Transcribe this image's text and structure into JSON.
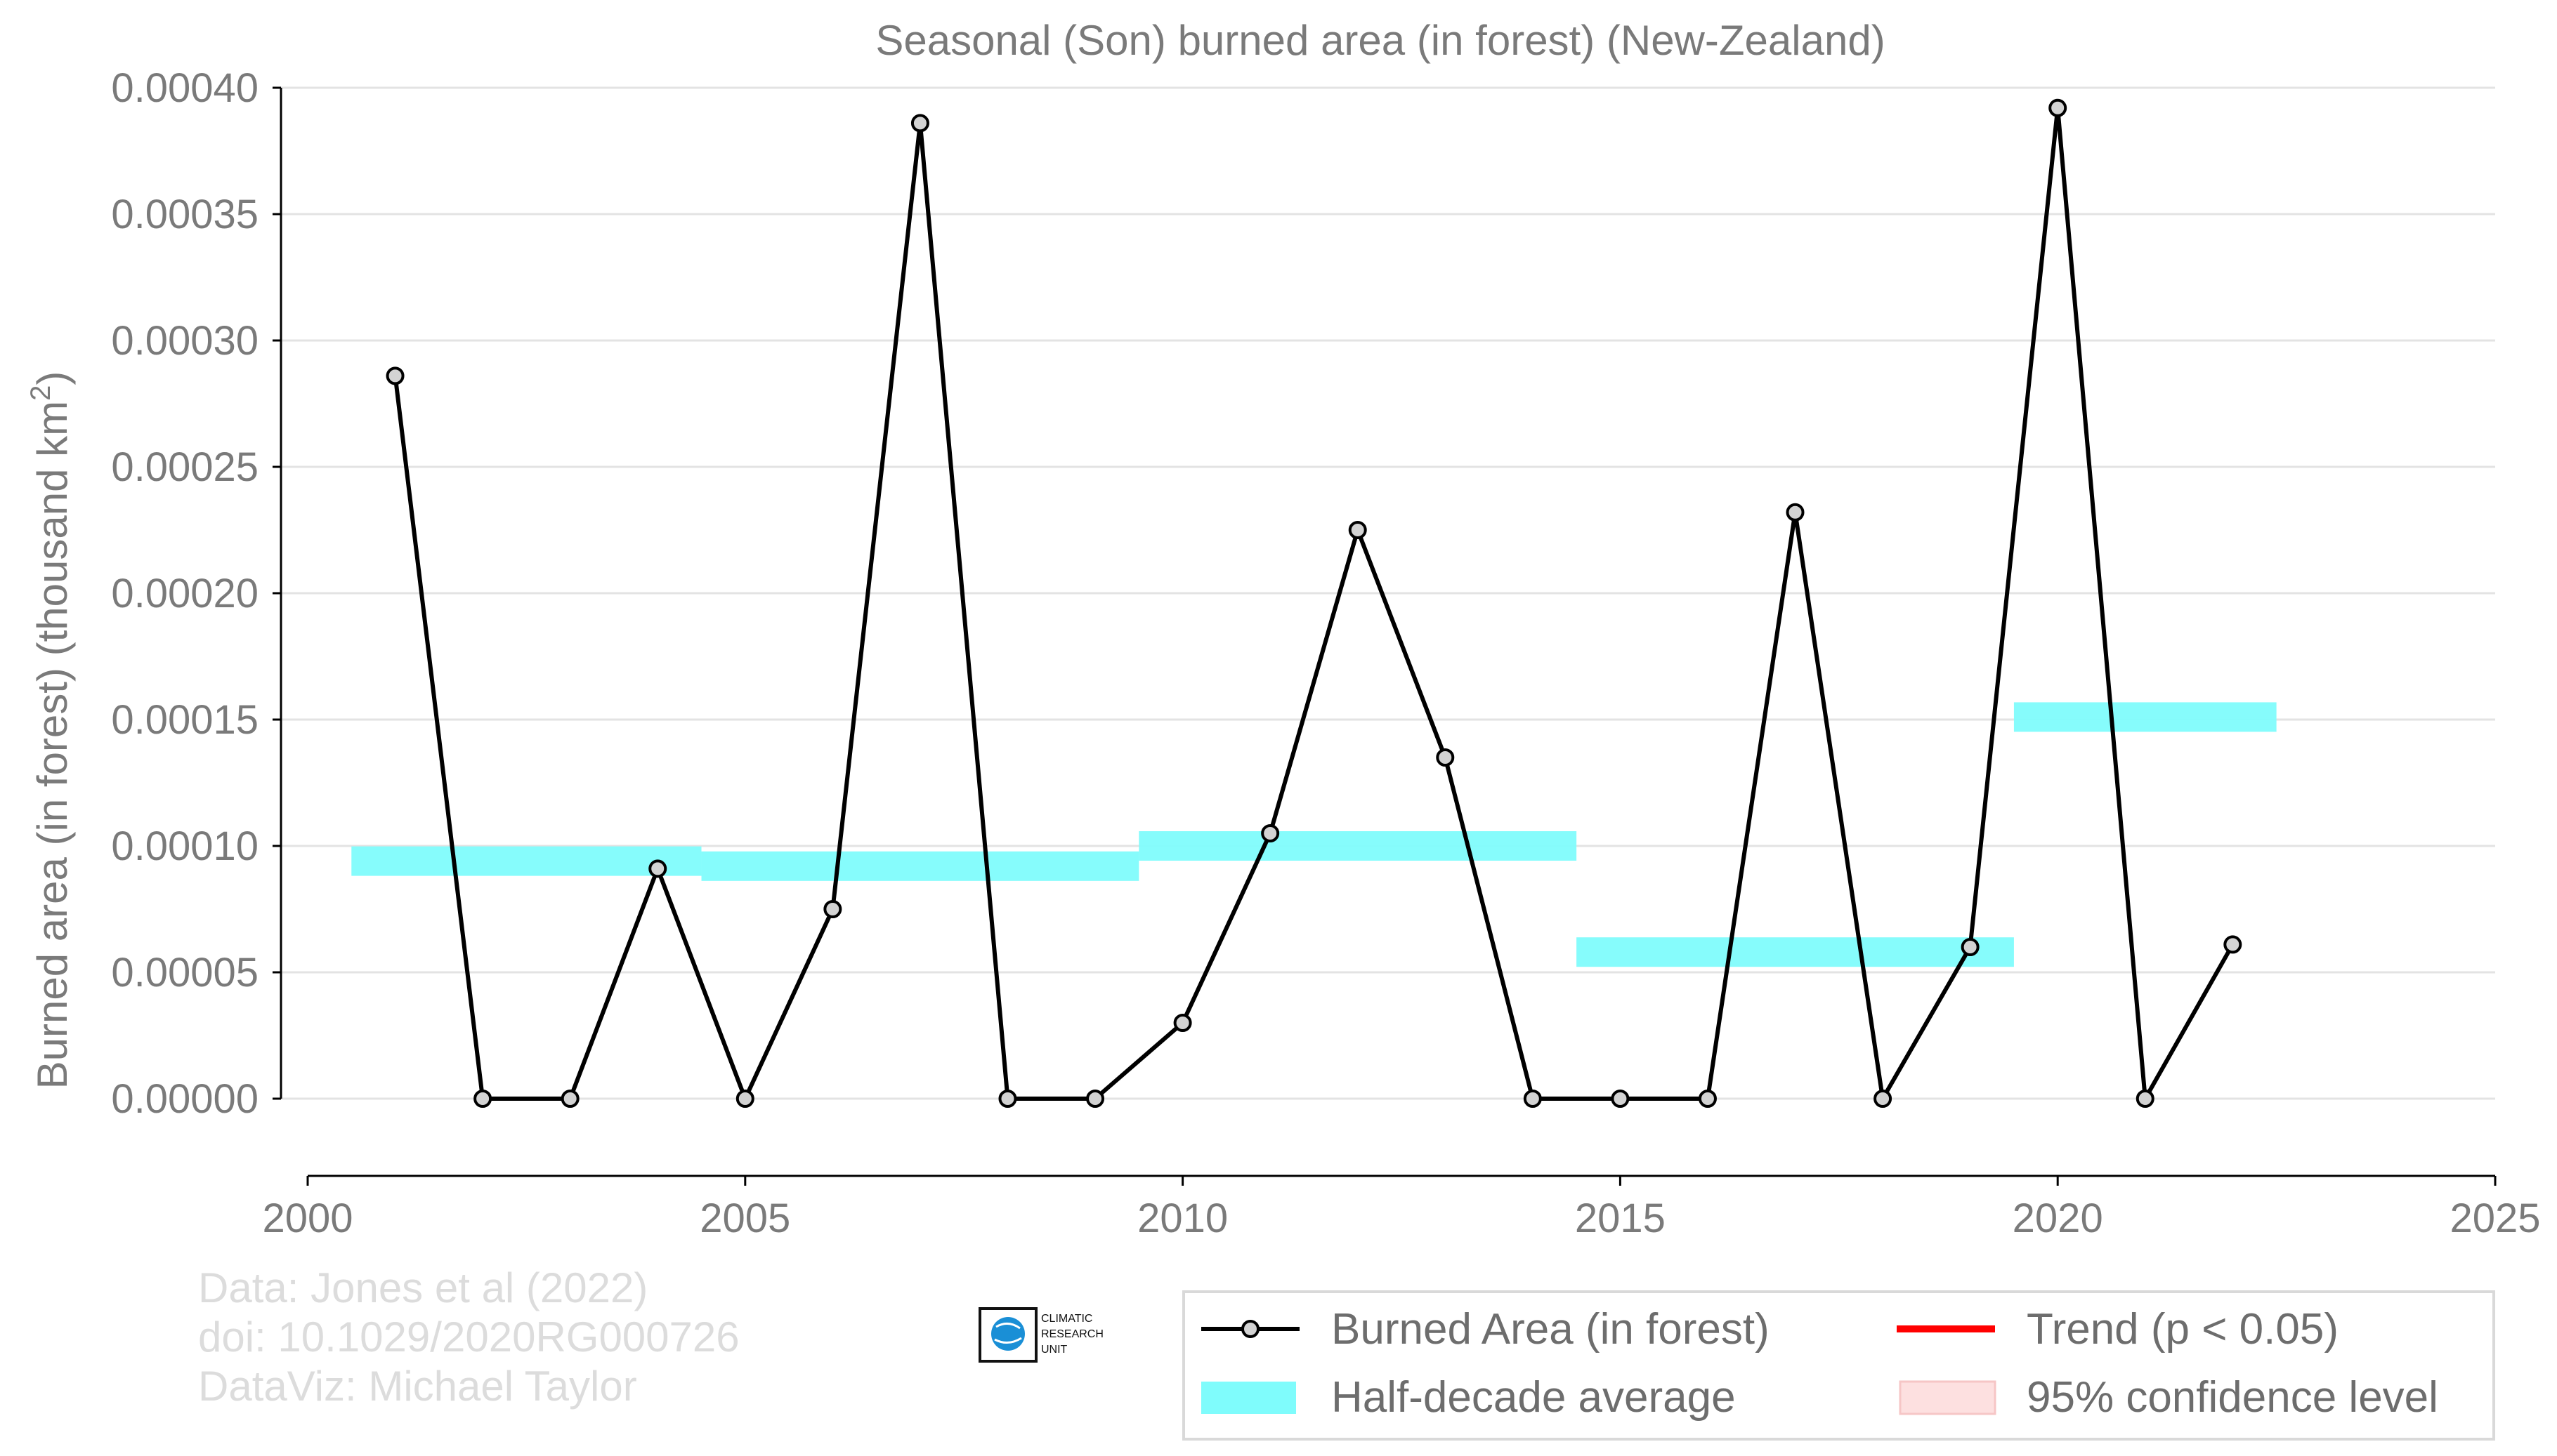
{
  "chart_data": {
    "type": "line",
    "title": "Seasonal (Son) burned area (in forest) (New-Zealand)",
    "xlabel": "",
    "ylabel": "Burned area (in forest) (thousand km",
    "ylabel_sup": "2",
    "ylabel_suffix": ")",
    "xlim": [
      2000,
      2025
    ],
    "ylim": [
      -3e-05,
      0.0004
    ],
    "x_ticks": [
      2000,
      2005,
      2010,
      2015,
      2020,
      2025
    ],
    "x_tick_labels": [
      "2000",
      "2005",
      "2010",
      "2015",
      "2020",
      "2025"
    ],
    "y_ticks": [
      0,
      5e-05,
      0.0001,
      0.00015,
      0.0002,
      0.00025,
      0.0003,
      0.00035,
      0.0004
    ],
    "y_tick_labels": [
      "0.00000",
      "0.00005",
      "0.00010",
      "0.00015",
      "0.00020",
      "0.00025",
      "0.00030",
      "0.00035",
      "0.00040"
    ],
    "grid": "horizontal",
    "series": [
      {
        "name": "Burned Area (in forest)",
        "color": "#000000",
        "marker_fill": "#d3d3d3",
        "x": [
          2001,
          2002,
          2003,
          2004,
          2005,
          2006,
          2007,
          2008,
          2009,
          2010,
          2011,
          2012,
          2013,
          2014,
          2015,
          2016,
          2017,
          2018,
          2019,
          2020,
          2021,
          2022
        ],
        "y": [
          0.000286,
          0,
          0,
          9.1e-05,
          0,
          7.5e-05,
          0.000386,
          0,
          0,
          3e-05,
          0.000105,
          0.000225,
          0.000135,
          0,
          0,
          0,
          0.000232,
          0,
          6e-05,
          0.000392,
          0,
          6.1e-05
        ]
      }
    ],
    "half_decade_average": {
      "name": "Half-decade average",
      "color": "#7ffcfc",
      "segments": [
        {
          "x_start": 2000.5,
          "x_end": 2004.5,
          "value": 9.4e-05
        },
        {
          "x_start": 2004.5,
          "x_end": 2009.5,
          "value": 9.2e-05
        },
        {
          "x_start": 2009.5,
          "x_end": 2014.5,
          "value": 0.0001
        },
        {
          "x_start": 2014.5,
          "x_end": 2019.5,
          "value": 5.8e-05
        },
        {
          "x_start": 2019.5,
          "x_end": 2022.5,
          "value": 0.000151
        }
      ]
    },
    "legend": {
      "position": "bottom-right",
      "entries": [
        {
          "label": "Burned Area (in forest)",
          "kind": "line-marker",
          "color": "#000000"
        },
        {
          "label": "Trend (p < 0.05)",
          "kind": "line",
          "color": "#ff0000"
        },
        {
          "label": "Half-decade average",
          "kind": "patch",
          "color": "#7ffcfc"
        },
        {
          "label": "95% confidence level",
          "kind": "patch",
          "color": "#fde0e0"
        }
      ]
    },
    "credits": [
      "Data: Jones et al (2022)",
      "doi: 10.1029/2020RG000726",
      "DataViz: Michael Taylor"
    ],
    "logo_text": [
      "CLIMATIC",
      "RESEARCH",
      "UNIT"
    ]
  }
}
